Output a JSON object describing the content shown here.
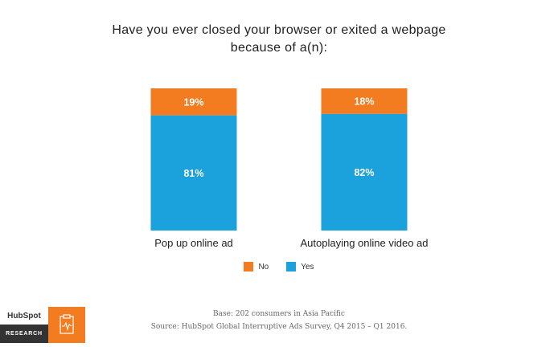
{
  "title": {
    "line1": "Have you ever closed your browser or exited a webpage",
    "line2": "because of a(n):"
  },
  "chart_data": {
    "type": "bar",
    "stacked": true,
    "percent": true,
    "categories": [
      "Pop up online ad",
      "Autoplaying online video ad"
    ],
    "series": [
      {
        "name": "No",
        "values": [
          19,
          18
        ],
        "labels": [
          "19%",
          "18%"
        ],
        "color": "#f47c20"
      },
      {
        "name": "Yes",
        "values": [
          81,
          82
        ],
        "labels": [
          "81%",
          "82%"
        ],
        "color": "#1ba1dc"
      }
    ],
    "ylim": [
      0,
      100
    ],
    "grid": false,
    "legend": "bottom-center"
  },
  "legend": {
    "no_label": "No",
    "yes_label": "Yes"
  },
  "footer": {
    "base": "Base: 202 consumers in Asia Pacific",
    "source": "Source: HubSpot Global Interruptive Ads Survey, Q4 2015 – Q1 2016."
  },
  "logo": {
    "brand": "HubSpot",
    "tag": "RESEARCH",
    "icon": "clipboard-pulse-icon"
  }
}
